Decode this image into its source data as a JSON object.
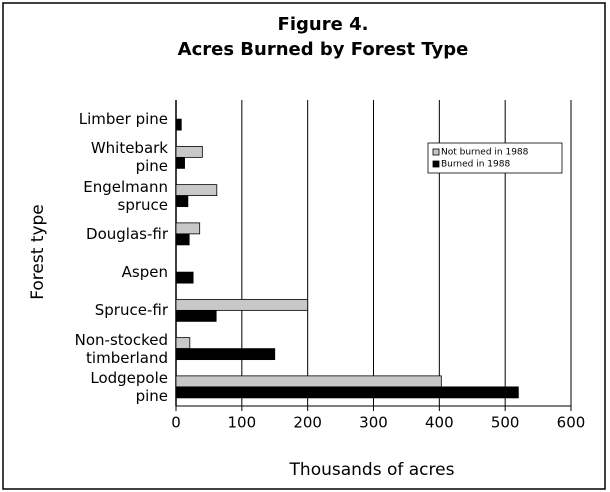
{
  "chart_data": {
    "type": "hbar",
    "title": "Figure 4.",
    "subtitle": "Acres Burned by Forest Type",
    "ylabel": "Forest type",
    "xlabel": "Thousands of acres",
    "categories": [
      "Limber pine",
      "Whitebark\npine",
      "Engelmann\nspruce",
      "Douglas-fir",
      "Aspen",
      "Spruce-fir",
      "Non-stocked\ntimberland",
      "Lodgepole\npine"
    ],
    "series": [
      {
        "name": "Not burned in 1988",
        "color": "#c8c8c8",
        "values": [
          0,
          40,
          62,
          36,
          0,
          200,
          21,
          403
        ]
      },
      {
        "name": "Burned in 1988",
        "color": "#000000",
        "values": [
          8,
          13,
          18,
          20,
          26,
          61,
          150,
          520
        ]
      }
    ],
    "xlim": [
      0,
      600
    ],
    "xticks": [
      0,
      100,
      200,
      300,
      400,
      500,
      600
    ],
    "grid": true,
    "legend": "upper right"
  }
}
